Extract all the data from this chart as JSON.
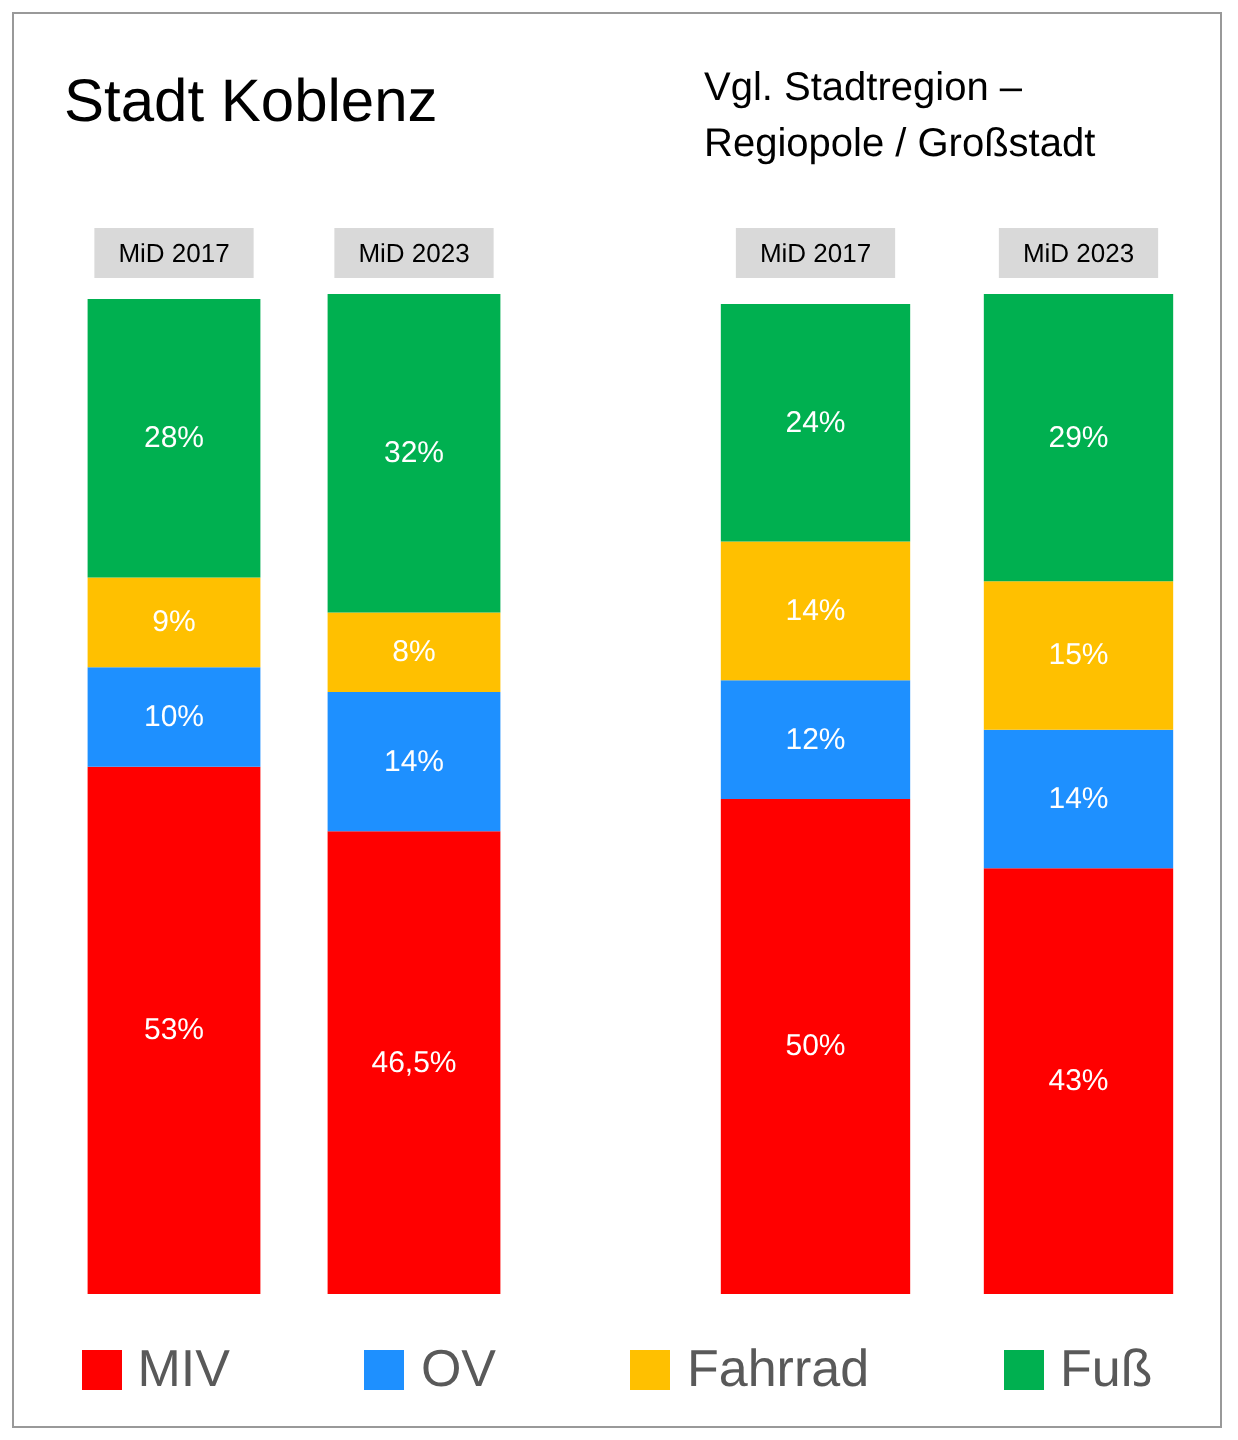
{
  "chart_data": [
    {
      "type": "bar",
      "title": "Stadt Koblenz",
      "categories": [
        "MiD 2017",
        "MiD 2023"
      ],
      "stacked": true,
      "legend": "bottom",
      "series": [
        {
          "name": "MIV",
          "color": "#ff0000",
          "values": [
            53,
            46.5
          ],
          "value_labels": [
            "53%",
            "46,5%"
          ]
        },
        {
          "name": "OV",
          "color": "#1e90ff",
          "values": [
            10,
            14
          ],
          "value_labels": [
            "10%",
            "14%"
          ]
        },
        {
          "name": "Fahrrad",
          "color": "#ffc000",
          "values": [
            9,
            8
          ],
          "value_labels": [
            "9%",
            "8%"
          ]
        },
        {
          "name": "Fuß",
          "color": "#00b050",
          "values": [
            28,
            32
          ],
          "value_labels": [
            "28%",
            "32%"
          ]
        }
      ]
    },
    {
      "type": "bar",
      "title": "Vgl. Stadtregion – Regiopole / Großstadt",
      "categories": [
        "MiD 2017",
        "MiD 2023"
      ],
      "stacked": true,
      "series": [
        {
          "color": "#ff0000",
          "values": [
            50,
            43
          ],
          "value_labels": [
            "50%",
            "43%"
          ]
        },
        {
          "color": "#1e90ff",
          "values": [
            12,
            14
          ],
          "value_labels": [
            "12%",
            "14%"
          ]
        },
        {
          "color": "#ffc000",
          "values": [
            14,
            15
          ],
          "value_labels": [
            "14%",
            "15%"
          ]
        },
        {
          "color": "#00b050",
          "values": [
            24,
            29
          ],
          "value_labels": [
            "24%",
            "29%"
          ]
        }
      ]
    }
  ]
}
